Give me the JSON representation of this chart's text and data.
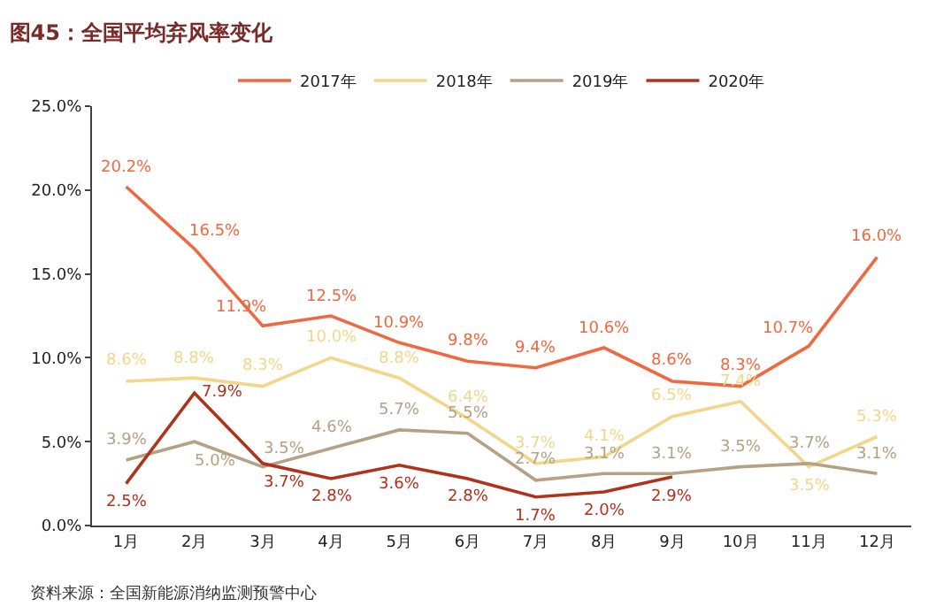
{
  "chart_data": {
    "type": "line",
    "title": "图45：全国平均弃风率变化",
    "categories": [
      "1月",
      "2月",
      "3月",
      "4月",
      "5月",
      "6月",
      "7月",
      "8月",
      "9月",
      "10月",
      "11月",
      "12月"
    ],
    "series": [
      {
        "name": "2017年",
        "color": "#f0683f",
        "values": [
          20.2,
          16.5,
          11.9,
          12.5,
          10.9,
          9.8,
          9.4,
          10.6,
          8.6,
          8.3,
          10.7,
          16.0
        ],
        "value_labels": [
          "20.2%",
          "16.5%",
          "11.9%",
          "12.5%",
          "10.9%",
          "9.8%",
          "9.4%",
          "10.6%",
          "8.6%",
          "8.3%",
          "10.7%",
          "16.0%"
        ]
      },
      {
        "name": "2018年",
        "color": "#f2d68a",
        "values": [
          8.6,
          8.8,
          8.3,
          10.0,
          8.8,
          6.4,
          3.7,
          4.1,
          6.5,
          7.4,
          3.5,
          5.3
        ],
        "value_labels": [
          "8.6%",
          "8.8%",
          "8.3%",
          "10.0%",
          "8.8%",
          "6.4%",
          "3.7%",
          "4.1%",
          "6.5%",
          "7.4%",
          "3.5%",
          "5.3%"
        ]
      },
      {
        "name": "2019年",
        "color": "#b5a284",
        "values": [
          3.9,
          5.0,
          3.5,
          4.6,
          5.7,
          5.5,
          2.7,
          3.1,
          3.1,
          3.5,
          3.7,
          3.1
        ],
        "value_labels": [
          "3.9%",
          "5.0%",
          "3.5%",
          "4.6%",
          "5.7%",
          "5.5%",
          "2.7%",
          "3.1%",
          "3.1%",
          "3.5%",
          "3.7%",
          "3.1%"
        ]
      },
      {
        "name": "2020年",
        "color": "#b0321a",
        "values": [
          2.5,
          7.9,
          3.7,
          2.8,
          3.6,
          2.8,
          1.7,
          2.0,
          2.9,
          null,
          null,
          null
        ],
        "value_labels": [
          "2.5%",
          "7.9%",
          "3.7%",
          "2.8%",
          "3.6%",
          "2.8%",
          "1.7%",
          "2.0%",
          "2.9%",
          null,
          null,
          null
        ]
      }
    ],
    "ylim": [
      0,
      25
    ],
    "yticks": [
      {
        "value": 0,
        "label": "0.0%"
      },
      {
        "value": 5,
        "label": "5.0%"
      },
      {
        "value": 10,
        "label": "10.0%"
      },
      {
        "value": 15,
        "label": "15.0%"
      },
      {
        "value": 20,
        "label": "20.0%"
      },
      {
        "value": 25,
        "label": "25.0%"
      }
    ],
    "data_labels": true,
    "legend": "top",
    "marker": "none",
    "line_style": "solid",
    "annotations": [
      "资料来源：全国新能源消纳监测预警中心"
    ]
  }
}
